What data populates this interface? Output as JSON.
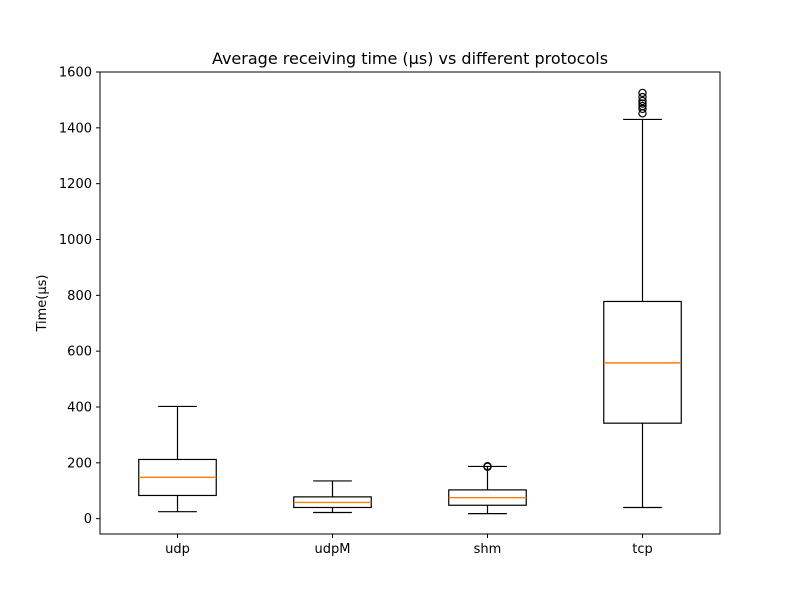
{
  "chart_data": {
    "type": "box",
    "title": "Average receiving time (µs) vs different protocols",
    "xlabel": "",
    "ylabel": "Time(µs)",
    "ylim": [
      -55,
      1600
    ],
    "yticks": [
      0,
      200,
      400,
      600,
      800,
      1000,
      1200,
      1400,
      1600
    ],
    "grid": false,
    "categories": [
      "udp",
      "udpM",
      "shm",
      "tcp"
    ],
    "boxes": [
      {
        "category": "udp",
        "whisker_low": 25,
        "q1": 83,
        "median": 148,
        "q3": 212,
        "whisker_high": 402,
        "outliers": []
      },
      {
        "category": "udpM",
        "whisker_low": 22,
        "q1": 40,
        "median": 58,
        "q3": 78,
        "whisker_high": 135,
        "outliers": []
      },
      {
        "category": "shm",
        "whisker_low": 18,
        "q1": 48,
        "median": 75,
        "q3": 103,
        "whisker_high": 187,
        "outliers": [
          186,
          188
        ]
      },
      {
        "category": "tcp",
        "whisker_low": 40,
        "q1": 342,
        "median": 558,
        "q3": 778,
        "whisker_high": 1430,
        "outliers": [
          1452,
          1468,
          1478,
          1487,
          1496,
          1510,
          1525
        ]
      }
    ],
    "colors": {
      "box": "#000000",
      "median": "#ff7f0e",
      "outlier": "#000000"
    }
  }
}
